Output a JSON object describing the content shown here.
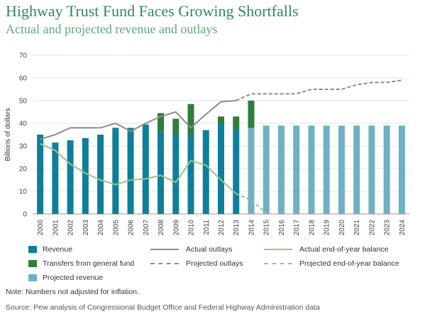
{
  "title": "Highway Trust Fund Faces Growing Shortfalls",
  "subtitle": "Actual and projected revenue and outlays",
  "note": "Note: Numbers not adjusted for inflation.",
  "source": "Source: Pew analysis of Congressional Budget Office and Federal Highway Administration data",
  "colors": {
    "revenue": "#0e7f9a",
    "transfers": "#2e7d3a",
    "projected_revenue": "#6fb0c4",
    "actual_outlays": "#8c8c8c",
    "projected_outlays": "#8c8c8c",
    "actual_balance": "#9ac48a",
    "projected_balance": "#9ac48a",
    "grid": "#e3e3e3"
  },
  "legend": {
    "revenue": "Revenue",
    "transfers": "Transfers from general fund",
    "projected_revenue": "Projected revenue",
    "actual_outlays": "Actual outlays",
    "projected_outlays": "Projected outlays",
    "actual_balance": "Actual end-of-year balance",
    "projected_balance": "Projected end-of-year balance"
  },
  "chart_data": {
    "type": "bar",
    "ylabel": "Billions of dollars",
    "xlabel": "",
    "ylim": [
      0,
      70
    ],
    "yticks": [
      0,
      10,
      20,
      30,
      40,
      50,
      60,
      70
    ],
    "grid": true,
    "legend_position": "bottom",
    "categories": [
      "2000",
      "2001",
      "2002",
      "2003",
      "2004",
      "2005",
      "2006",
      "2007",
      "2008",
      "2009",
      "2010",
      "2011",
      "2012",
      "2013",
      "2014",
      "2015",
      "2016",
      "2017",
      "2018",
      "2019",
      "2020",
      "2021",
      "2022",
      "2023",
      "2024"
    ],
    "series": [
      {
        "name": "Revenue",
        "kind": "bar",
        "values": [
          35,
          31.5,
          32.5,
          33.5,
          35,
          38,
          38,
          39.5,
          36.5,
          35,
          35,
          37,
          40,
          37.5,
          null,
          null,
          null,
          null,
          null,
          null,
          null,
          null,
          null,
          null,
          null
        ]
      },
      {
        "name": "Transfers from general fund",
        "kind": "bar-stack",
        "values": [
          0,
          0,
          0,
          0,
          0,
          0,
          0,
          0,
          8,
          7,
          13.5,
          0,
          3,
          5.5,
          12,
          0,
          0,
          0,
          0,
          0,
          0,
          0,
          0,
          0,
          0
        ]
      },
      {
        "name": "Projected revenue",
        "kind": "bar",
        "values": [
          null,
          null,
          null,
          null,
          null,
          null,
          null,
          null,
          null,
          null,
          null,
          null,
          null,
          null,
          38,
          39,
          39,
          39,
          39,
          39,
          39,
          39,
          39,
          39,
          39
        ]
      },
      {
        "name": "Actual outlays",
        "kind": "line",
        "values": [
          33,
          35,
          38,
          38,
          38,
          40,
          36.5,
          40,
          43,
          45,
          38,
          44,
          49.5,
          50,
          null,
          null,
          null,
          null,
          null,
          null,
          null,
          null,
          null,
          null,
          null
        ]
      },
      {
        "name": "Projected outlays",
        "kind": "line-dashed",
        "values": [
          null,
          null,
          null,
          null,
          null,
          null,
          null,
          null,
          null,
          null,
          null,
          null,
          null,
          50,
          53,
          53,
          53,
          53,
          55,
          55,
          55,
          57,
          58,
          58,
          59
        ]
      },
      {
        "name": "Actual end-of-year balance",
        "kind": "line",
        "values": [
          31,
          28,
          22,
          18,
          15,
          13,
          15,
          15.5,
          17,
          14,
          23.5,
          21.5,
          15,
          9,
          null,
          null,
          null,
          null,
          null,
          null,
          null,
          null,
          null,
          null,
          null
        ]
      },
      {
        "name": "Projected end-of-year balance",
        "kind": "line-dashed",
        "values": [
          null,
          null,
          null,
          null,
          null,
          null,
          null,
          null,
          null,
          null,
          null,
          null,
          null,
          9,
          6,
          0.5,
          null,
          null,
          null,
          null,
          null,
          null,
          null,
          null,
          null
        ]
      }
    ]
  }
}
